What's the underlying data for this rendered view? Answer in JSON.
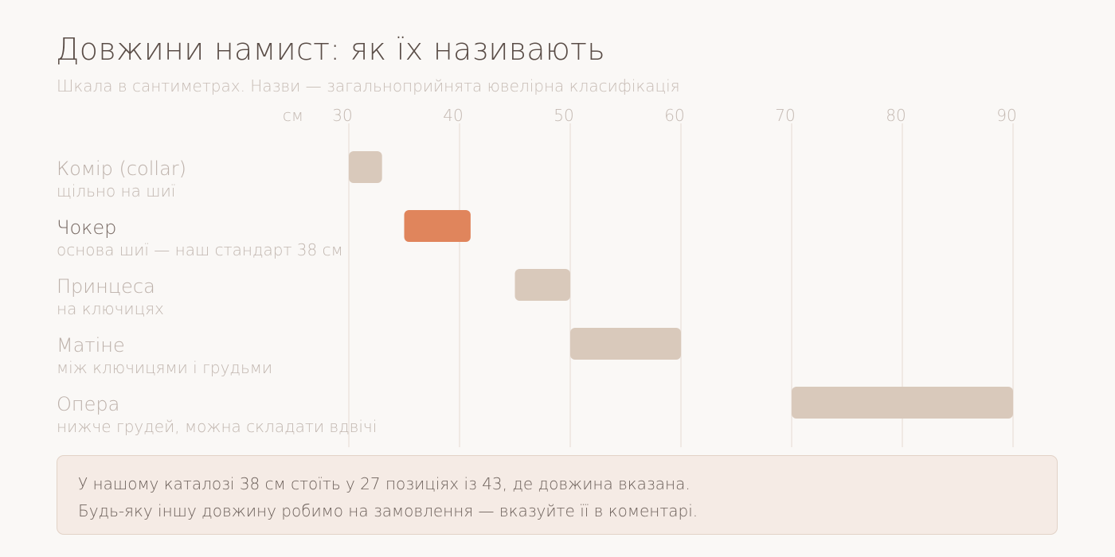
{
  "title": "Довжини намист: як їх називають",
  "subtitle": "Шкала в сантиметрах. Назви — загальноприйнята ювелірна класифікація",
  "colors": {
    "default_bar": "#d9c9bb",
    "highlight_bar": "#e0855c",
    "grid": "#ece4de"
  },
  "chart_data": {
    "type": "bar",
    "orientation": "horizontal-range",
    "axis_unit_label": "см",
    "xlim": [
      30,
      90
    ],
    "ticks": [
      30,
      40,
      50,
      60,
      70,
      80,
      90
    ],
    "grid": true,
    "rows": [
      {
        "name": "Комір (collar)",
        "description": "щільно на шиї",
        "start": 30,
        "end": 33,
        "highlight": false
      },
      {
        "name": "Чокер",
        "description": "основа шиї — наш стандарт 38 см",
        "start": 35,
        "end": 41,
        "highlight": true
      },
      {
        "name": "Принцеса",
        "description": "на ключицях",
        "start": 45,
        "end": 50,
        "highlight": false
      },
      {
        "name": "Матіне",
        "description": "між ключицями і грудьми",
        "start": 50,
        "end": 60,
        "highlight": false
      },
      {
        "name": "Опера",
        "description": "нижче грудей, можна складати вдвічі",
        "start": 70,
        "end": 90,
        "highlight": false
      }
    ]
  },
  "callout": {
    "line1": "У нашому каталозі 38 см стоїть у 27 позиціях із 43, де довжина вказана.",
    "line2": "Будь-яку іншу довжину робимо на замовлення — вказуйте її в коментарі."
  }
}
